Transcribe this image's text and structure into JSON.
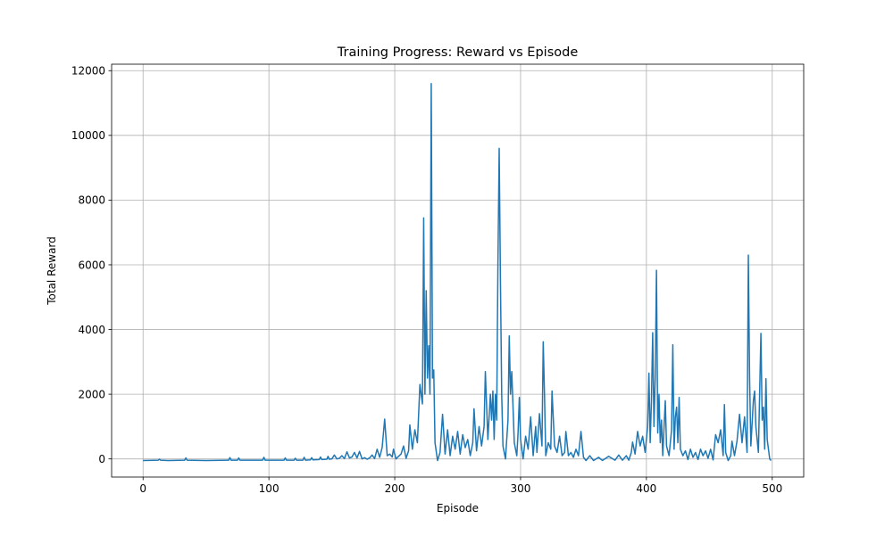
{
  "chart_data": {
    "type": "line",
    "title": "Training Progress: Reward vs Episode",
    "xlabel": "Episode",
    "ylabel": "Total Reward",
    "xlim": [
      -25,
      525
    ],
    "ylim": [
      -560,
      12200
    ],
    "xticks": [
      0,
      100,
      200,
      300,
      400,
      500
    ],
    "yticks": [
      0,
      2000,
      4000,
      6000,
      8000,
      10000,
      12000
    ],
    "grid": true,
    "legend": "none",
    "series": [
      {
        "color": "#1f77b4",
        "points": [
          [
            0,
            -50
          ],
          [
            12,
            -40
          ],
          [
            13,
            -10
          ],
          [
            14,
            -40
          ],
          [
            20,
            -50
          ],
          [
            33,
            -40
          ],
          [
            34,
            30
          ],
          [
            35,
            -40
          ],
          [
            50,
            -50
          ],
          [
            68,
            -40
          ],
          [
            69,
            40
          ],
          [
            70,
            -40
          ],
          [
            75,
            -40
          ],
          [
            76,
            30
          ],
          [
            77,
            -40
          ],
          [
            95,
            -40
          ],
          [
            96,
            50
          ],
          [
            97,
            -40
          ],
          [
            112,
            -40
          ],
          [
            113,
            30
          ],
          [
            114,
            -40
          ],
          [
            120,
            -40
          ],
          [
            121,
            20
          ],
          [
            122,
            -40
          ],
          [
            127,
            -40
          ],
          [
            128,
            50
          ],
          [
            129,
            -40
          ],
          [
            133,
            -30
          ],
          [
            134,
            40
          ],
          [
            135,
            -30
          ],
          [
            140,
            -20
          ],
          [
            141,
            60
          ],
          [
            142,
            -20
          ],
          [
            146,
            -10
          ],
          [
            147,
            80
          ],
          [
            148,
            -10
          ],
          [
            150,
            0
          ],
          [
            152,
            120
          ],
          [
            154,
            0
          ],
          [
            156,
            20
          ],
          [
            158,
            100
          ],
          [
            160,
            10
          ],
          [
            162,
            220
          ],
          [
            164,
            30
          ],
          [
            166,
            60
          ],
          [
            168,
            200
          ],
          [
            170,
            30
          ],
          [
            172,
            230
          ],
          [
            174,
            0
          ],
          [
            176,
            40
          ],
          [
            178,
            -10
          ],
          [
            180,
            30
          ],
          [
            182,
            120
          ],
          [
            184,
            10
          ],
          [
            186,
            300
          ],
          [
            188,
            50
          ],
          [
            190,
            350
          ],
          [
            192,
            1230
          ],
          [
            194,
            100
          ],
          [
            196,
            150
          ],
          [
            198,
            60
          ],
          [
            199,
            300
          ],
          [
            201,
            0
          ],
          [
            203,
            80
          ],
          [
            205,
            150
          ],
          [
            207,
            400
          ],
          [
            209,
            20
          ],
          [
            211,
            250
          ],
          [
            212,
            1050
          ],
          [
            214,
            300
          ],
          [
            216,
            900
          ],
          [
            218,
            500
          ],
          [
            220,
            2300
          ],
          [
            222,
            1700
          ],
          [
            223,
            7450
          ],
          [
            224,
            2000
          ],
          [
            225,
            5200
          ],
          [
            226,
            2500
          ],
          [
            227,
            3500
          ],
          [
            228,
            2000
          ],
          [
            229,
            11600
          ],
          [
            230,
            2500
          ],
          [
            231,
            2750
          ],
          [
            232,
            500
          ],
          [
            234,
            -50
          ],
          [
            236,
            200
          ],
          [
            238,
            1380
          ],
          [
            240,
            150
          ],
          [
            242,
            900
          ],
          [
            244,
            100
          ],
          [
            246,
            700
          ],
          [
            248,
            300
          ],
          [
            250,
            850
          ],
          [
            252,
            150
          ],
          [
            254,
            750
          ],
          [
            256,
            350
          ],
          [
            258,
            600
          ],
          [
            260,
            100
          ],
          [
            262,
            500
          ],
          [
            263,
            1550
          ],
          [
            265,
            250
          ],
          [
            267,
            1000
          ],
          [
            269,
            400
          ],
          [
            271,
            1000
          ],
          [
            272,
            2700
          ],
          [
            274,
            600
          ],
          [
            276,
            2000
          ],
          [
            277,
            1200
          ],
          [
            278,
            2100
          ],
          [
            279,
            600
          ],
          [
            280,
            2000
          ],
          [
            281,
            1200
          ],
          [
            282,
            6000
          ],
          [
            283,
            9600
          ],
          [
            284,
            5500
          ],
          [
            285,
            2000
          ],
          [
            286,
            400
          ],
          [
            288,
            0
          ],
          [
            290,
            1200
          ],
          [
            291,
            3800
          ],
          [
            292,
            2000
          ],
          [
            293,
            2700
          ],
          [
            295,
            500
          ],
          [
            297,
            100
          ],
          [
            298,
            800
          ],
          [
            299,
            1900
          ],
          [
            300,
            600
          ],
          [
            302,
            0
          ],
          [
            304,
            700
          ],
          [
            306,
            300
          ],
          [
            308,
            1300
          ],
          [
            310,
            100
          ],
          [
            312,
            1000
          ],
          [
            313,
            200
          ],
          [
            315,
            1400
          ],
          [
            317,
            400
          ],
          [
            318,
            3620
          ],
          [
            319,
            2000
          ],
          [
            320,
            100
          ],
          [
            322,
            500
          ],
          [
            324,
            300
          ],
          [
            325,
            2100
          ],
          [
            327,
            400
          ],
          [
            329,
            200
          ],
          [
            331,
            700
          ],
          [
            333,
            100
          ],
          [
            335,
            200
          ],
          [
            336,
            850
          ],
          [
            338,
            100
          ],
          [
            340,
            200
          ],
          [
            342,
            50
          ],
          [
            344,
            300
          ],
          [
            346,
            100
          ],
          [
            348,
            850
          ],
          [
            350,
            50
          ],
          [
            352,
            -50
          ],
          [
            355,
            100
          ],
          [
            358,
            -50
          ],
          [
            362,
            50
          ],
          [
            365,
            -50
          ],
          [
            370,
            80
          ],
          [
            375,
            -40
          ],
          [
            378,
            120
          ],
          [
            381,
            -40
          ],
          [
            384,
            100
          ],
          [
            386,
            -40
          ],
          [
            388,
            200
          ],
          [
            389,
            520
          ],
          [
            391,
            150
          ],
          [
            393,
            850
          ],
          [
            395,
            400
          ],
          [
            397,
            700
          ],
          [
            399,
            200
          ],
          [
            401,
            1000
          ],
          [
            402,
            2650
          ],
          [
            403,
            500
          ],
          [
            404,
            1800
          ],
          [
            405,
            3900
          ],
          [
            406,
            1000
          ],
          [
            407,
            2500
          ],
          [
            408,
            5830
          ],
          [
            409,
            800
          ],
          [
            410,
            2000
          ],
          [
            411,
            500
          ],
          [
            412,
            1200
          ],
          [
            413,
            100
          ],
          [
            415,
            1800
          ],
          [
            416,
            400
          ],
          [
            418,
            100
          ],
          [
            420,
            900
          ],
          [
            421,
            3530
          ],
          [
            422,
            300
          ],
          [
            423,
            1300
          ],
          [
            424,
            1600
          ],
          [
            425,
            500
          ],
          [
            426,
            1900
          ],
          [
            427,
            300
          ],
          [
            429,
            100
          ],
          [
            431,
            250
          ],
          [
            433,
            -20
          ],
          [
            435,
            300
          ],
          [
            437,
            50
          ],
          [
            439,
            200
          ],
          [
            441,
            -20
          ],
          [
            443,
            300
          ],
          [
            445,
            100
          ],
          [
            447,
            250
          ],
          [
            449,
            20
          ],
          [
            451,
            300
          ],
          [
            453,
            -30
          ],
          [
            455,
            750
          ],
          [
            457,
            500
          ],
          [
            459,
            900
          ],
          [
            461,
            100
          ],
          [
            462,
            1680
          ],
          [
            463,
            200
          ],
          [
            465,
            -50
          ],
          [
            467,
            100
          ],
          [
            468,
            550
          ],
          [
            470,
            100
          ],
          [
            472,
            550
          ],
          [
            474,
            1380
          ],
          [
            476,
            500
          ],
          [
            478,
            1300
          ],
          [
            480,
            200
          ],
          [
            481,
            6300
          ],
          [
            482,
            2500
          ],
          [
            483,
            400
          ],
          [
            485,
            1800
          ],
          [
            486,
            2100
          ],
          [
            487,
            1000
          ],
          [
            489,
            200
          ],
          [
            491,
            3880
          ],
          [
            492,
            1200
          ],
          [
            493,
            1600
          ],
          [
            494,
            300
          ],
          [
            495,
            2480
          ],
          [
            496,
            600
          ],
          [
            498,
            0
          ],
          [
            499,
            -50
          ]
        ]
      }
    ]
  }
}
